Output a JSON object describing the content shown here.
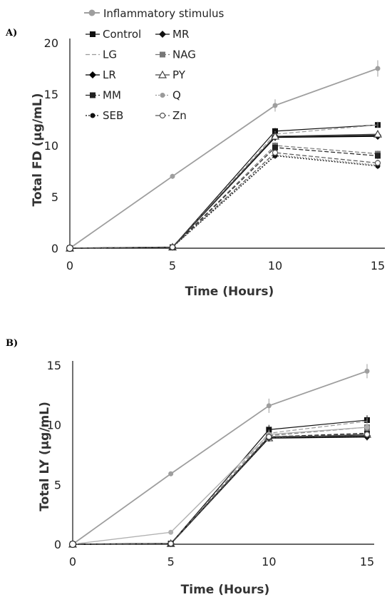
{
  "figure": {
    "legend": {
      "top_entry": {
        "label": "Inflammatory stimulus",
        "color": "#9e9e9e"
      },
      "entries": [
        {
          "label": "Control",
          "marker": "square",
          "color": "#111111",
          "dash": "solid"
        },
        {
          "label": "MR",
          "marker": "diamond",
          "color": "#111111",
          "dash": "solid"
        },
        {
          "label": "LG",
          "marker": "none",
          "color": "#9a9a9a",
          "dash": "dash"
        },
        {
          "label": "NAG",
          "marker": "square",
          "color": "#777777",
          "dash": "dash"
        },
        {
          "label": "LR",
          "marker": "diamond",
          "color": "#000000",
          "dash": "solid"
        },
        {
          "label": "PY",
          "marker": "triangle-open",
          "color": "#444444",
          "dash": "solid"
        },
        {
          "label": "MM",
          "marker": "square",
          "color": "#222222",
          "dash": "dash"
        },
        {
          "label": "Q",
          "marker": "circle",
          "color": "#9a9a9a",
          "dash": "dot"
        },
        {
          "label": "SEB",
          "marker": "circle",
          "color": "#111111",
          "dash": "dot"
        },
        {
          "label": "Zn",
          "marker": "circle-open",
          "color": "#555555",
          "dash": "dash"
        }
      ]
    }
  },
  "chart_data": [
    {
      "panel_label": "A)",
      "type": "line",
      "xlabel": "Time (Hours)",
      "ylabel": "Total FD (μg/mL)",
      "x": [
        0,
        5,
        10,
        15
      ],
      "xlim": [
        0,
        15
      ],
      "ylim": [
        0,
        20
      ],
      "x_ticks": [
        "0",
        "5",
        "10",
        "15"
      ],
      "y_ticks": [
        "0",
        "5",
        "10",
        "15",
        "20"
      ],
      "grid": false,
      "legend_position": "top",
      "series": [
        {
          "name": "Inflammatory stimulus",
          "values": [
            0,
            7,
            13.9,
            17.5
          ],
          "err": [
            0,
            0.25,
            0.6,
            0.8
          ],
          "color": "#9e9e9e",
          "marker": "circle",
          "dash": "solid",
          "width": 1.8
        },
        {
          "name": "Control",
          "values": [
            0,
            0.1,
            11.4,
            12.0
          ],
          "err": [
            0,
            0,
            0.3,
            0.3
          ],
          "color": "#111111",
          "marker": "square",
          "dash": "solid",
          "width": 1.2
        },
        {
          "name": "MR",
          "values": [
            0,
            0.1,
            10.9,
            11.0
          ],
          "err": [
            0,
            0,
            0.3,
            0.3
          ],
          "color": "#111111",
          "marker": "diamond",
          "dash": "solid",
          "width": 1.2
        },
        {
          "name": "LG",
          "values": [
            0,
            0.1,
            11.1,
            12.0
          ],
          "err": [
            0,
            0,
            0.3,
            0.3
          ],
          "color": "#9a9a9a",
          "marker": "none",
          "dash": "dash",
          "width": 1.2
        },
        {
          "name": "NAG",
          "values": [
            0,
            0.1,
            10.0,
            9.2
          ],
          "err": [
            0,
            0,
            0.3,
            0.3
          ],
          "color": "#777777",
          "marker": "square",
          "dash": "dash",
          "width": 1.2
        },
        {
          "name": "LR",
          "values": [
            0,
            0.1,
            10.8,
            10.9
          ],
          "err": [
            0,
            0,
            0.3,
            0.3
          ],
          "color": "#000000",
          "marker": "diamond",
          "dash": "solid",
          "width": 1.6
        },
        {
          "name": "PY",
          "values": [
            0,
            0.1,
            10.9,
            11.1
          ],
          "err": [
            0,
            0,
            0.3,
            0.3
          ],
          "color": "#444444",
          "marker": "triangle-open",
          "dash": "solid",
          "width": 1.2
        },
        {
          "name": "MM",
          "values": [
            0,
            0.1,
            9.8,
            9.0
          ],
          "err": [
            0,
            0,
            0.3,
            0.3
          ],
          "color": "#222222",
          "marker": "square",
          "dash": "dash",
          "width": 1.2
        },
        {
          "name": "Q",
          "values": [
            0,
            0.1,
            9.1,
            8.1
          ],
          "err": [
            0,
            0,
            0.3,
            0.3
          ],
          "color": "#9a9a9a",
          "marker": "circle",
          "dash": "dot",
          "width": 1.4
        },
        {
          "name": "SEB",
          "values": [
            0,
            0.1,
            9.0,
            8.0
          ],
          "err": [
            0,
            0,
            0.3,
            0.3
          ],
          "color": "#111111",
          "marker": "circle",
          "dash": "dot",
          "width": 1.2
        },
        {
          "name": "Zn",
          "values": [
            0,
            0.1,
            9.3,
            8.3
          ],
          "err": [
            0,
            0,
            0.3,
            0.3
          ],
          "color": "#555555",
          "marker": "circle-open",
          "dash": "dash",
          "width": 1.2
        }
      ]
    },
    {
      "panel_label": "B)",
      "type": "line",
      "xlabel": "Time (Hours)",
      "ylabel": "Total LY (μg/mL)",
      "x": [
        0,
        5,
        10,
        15
      ],
      "xlim": [
        0,
        15
      ],
      "ylim": [
        0,
        15
      ],
      "x_ticks": [
        "0",
        "5",
        "10",
        "15"
      ],
      "y_ticks": [
        "0",
        "5",
        "10",
        "15"
      ],
      "grid": false,
      "series": [
        {
          "name": "Inflammatory stimulus",
          "values": [
            0,
            5.9,
            11.6,
            14.5
          ],
          "err": [
            0,
            0.2,
            0.6,
            0.6
          ],
          "color": "#9e9e9e",
          "marker": "circle",
          "dash": "solid",
          "width": 1.8
        },
        {
          "name": "Control",
          "values": [
            0,
            0.05,
            9.6,
            10.4
          ],
          "err": [
            0,
            0,
            0.4,
            0.4
          ],
          "color": "#111111",
          "marker": "square",
          "dash": "solid",
          "width": 1.2
        },
        {
          "name": "MR",
          "values": [
            0,
            0.05,
            9.0,
            9.1
          ],
          "err": [
            0,
            0,
            0.3,
            0.3
          ],
          "color": "#111111",
          "marker": "diamond",
          "dash": "solid",
          "width": 1.2
        },
        {
          "name": "LG",
          "values": [
            0,
            0.05,
            9.3,
            10.3
          ],
          "err": [
            0,
            0,
            0.3,
            0.3
          ],
          "color": "#9a9a9a",
          "marker": "none",
          "dash": "dash",
          "width": 1.2
        },
        {
          "name": "NAG",
          "values": [
            0,
            0.05,
            9.1,
            9.8
          ],
          "err": [
            0,
            0,
            0.3,
            0.3
          ],
          "color": "#777777",
          "marker": "square",
          "dash": "dash",
          "width": 1.2
        },
        {
          "name": "LR",
          "values": [
            0,
            0.05,
            8.9,
            9.0
          ],
          "err": [
            0,
            0,
            0.3,
            0.3
          ],
          "color": "#000000",
          "marker": "diamond",
          "dash": "solid",
          "width": 1.8
        },
        {
          "name": "PY",
          "values": [
            0,
            0.05,
            8.9,
            9.2
          ],
          "err": [
            0,
            0,
            0.3,
            0.3
          ],
          "color": "#444444",
          "marker": "triangle-open",
          "dash": "solid",
          "width": 1.2
        },
        {
          "name": "MM",
          "values": [
            0,
            0.05,
            9.0,
            9.3
          ],
          "err": [
            0,
            0,
            0.3,
            0.3
          ],
          "color": "#222222",
          "marker": "square",
          "dash": "dash",
          "width": 1.2
        },
        {
          "name": "Q",
          "values": [
            0,
            1.0,
            9.2,
            9.8
          ],
          "err": [
            0,
            0,
            0.3,
            0.3
          ],
          "color": "#b0b0b0",
          "marker": "circle",
          "dash": "solid",
          "width": 1.4
        },
        {
          "name": "SEB",
          "values": [
            0,
            0.05,
            8.9,
            9.0
          ],
          "err": [
            0,
            0,
            0.3,
            0.3
          ],
          "color": "#111111",
          "marker": "circle",
          "dash": "dot",
          "width": 1.2
        },
        {
          "name": "Zn",
          "values": [
            0,
            0.05,
            9.0,
            9.2
          ],
          "err": [
            0,
            0,
            0.3,
            0.3
          ],
          "color": "#555555",
          "marker": "circle-open",
          "dash": "dash",
          "width": 1.2
        }
      ]
    }
  ]
}
